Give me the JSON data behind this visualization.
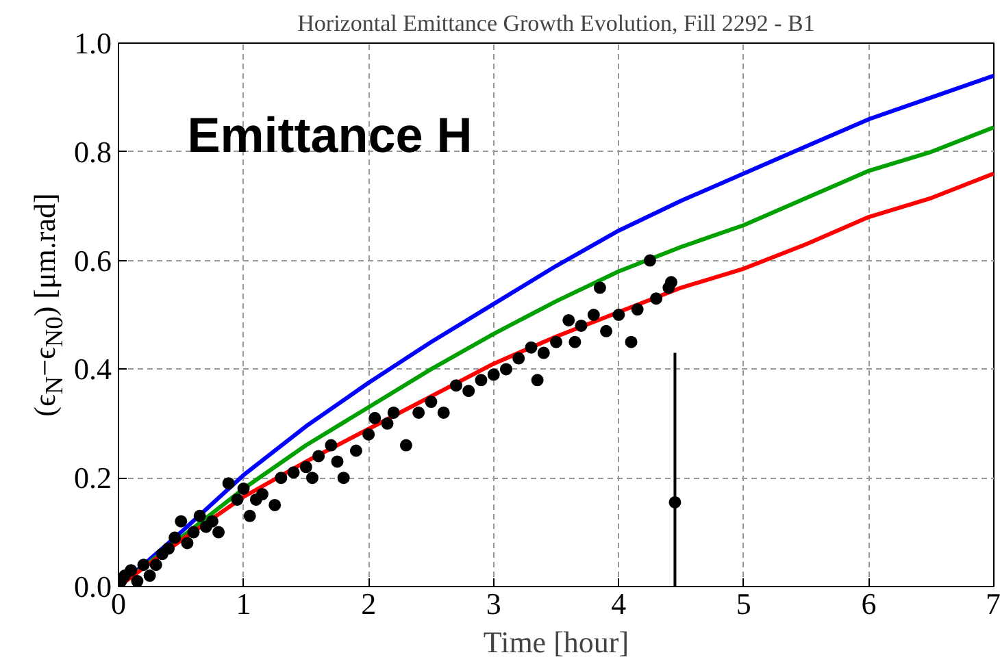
{
  "chart_data": {
    "type": "line",
    "title": "Horizontal Emittance Growth Evolution, Fill 2292 - B1",
    "xlabel": "Time [hour]",
    "ylabel": "(ϵ$_{N}$−ϵ$_{N0}$) [μm.rad]",
    "annotations": [
      "Emittance H"
    ],
    "xlim": [
      0,
      7
    ],
    "ylim": [
      0,
      1.0
    ],
    "xticks": [
      0,
      1,
      2,
      3,
      4,
      5,
      6,
      7
    ],
    "yticks": [
      {
        "value": 0,
        "label": "0.0"
      },
      0.2,
      0.4,
      0.6,
      0.8,
      {
        "value": 1,
        "label": "1.0"
      }
    ],
    "grid": true,
    "line_style": "solid",
    "series": [
      {
        "color": "#0000ff",
        "x": [
          0,
          0.5,
          1,
          1.5,
          2,
          2.5,
          3,
          3.5,
          4,
          4.5,
          5,
          5.5,
          6,
          6.5,
          7
        ],
        "values": [
          0,
          0.1,
          0.205,
          0.295,
          0.375,
          0.45,
          0.52,
          0.59,
          0.655,
          0.71,
          0.76,
          0.81,
          0.86,
          0.9,
          0.94
        ]
      },
      {
        "color": "#00a000",
        "x": [
          0,
          0.5,
          1,
          1.5,
          2,
          2.5,
          3,
          3.5,
          4,
          4.5,
          5,
          5.5,
          6,
          6.5,
          7
        ],
        "values": [
          0,
          0.09,
          0.18,
          0.26,
          0.33,
          0.4,
          0.465,
          0.525,
          0.58,
          0.625,
          0.665,
          0.715,
          0.765,
          0.8,
          0.845
        ]
      },
      {
        "color": "#ff0000",
        "x": [
          0,
          0.5,
          1,
          1.5,
          2,
          2.5,
          3,
          3.5,
          4,
          4.5,
          5,
          5.5,
          6,
          6.5,
          7
        ],
        "values": [
          0,
          0.085,
          0.165,
          0.23,
          0.29,
          0.35,
          0.41,
          0.46,
          0.505,
          0.55,
          0.585,
          0.63,
          0.68,
          0.715,
          0.76
        ]
      },
      {
        "type": "scatter",
        "color": "#000000",
        "marker": "circle",
        "x": [
          0.02,
          0.05,
          0.1,
          0.15,
          0.2,
          0.25,
          0.3,
          0.35,
          0.4,
          0.45,
          0.5,
          0.55,
          0.6,
          0.65,
          0.7,
          0.75,
          0.8,
          0.88,
          0.95,
          1.0,
          1.05,
          1.1,
          1.15,
          1.25,
          1.3,
          1.4,
          1.5,
          1.55,
          1.6,
          1.7,
          1.75,
          1.8,
          1.9,
          2.0,
          2.05,
          2.15,
          2.2,
          2.3,
          2.4,
          2.5,
          2.6,
          2.7,
          2.8,
          2.9,
          3.0,
          3.1,
          3.2,
          3.3,
          3.35,
          3.4,
          3.5,
          3.6,
          3.65,
          3.7,
          3.8,
          3.85,
          3.9,
          4.0,
          4.1,
          4.15,
          4.25,
          4.3,
          4.4,
          4.42,
          4.45
        ],
        "values": [
          0.01,
          0.02,
          0.03,
          0.01,
          0.04,
          0.02,
          0.04,
          0.06,
          0.07,
          0.09,
          0.12,
          0.08,
          0.1,
          0.13,
          0.11,
          0.12,
          0.1,
          0.19,
          0.16,
          0.18,
          0.13,
          0.16,
          0.17,
          0.15,
          0.2,
          0.21,
          0.22,
          0.2,
          0.24,
          0.26,
          0.23,
          0.2,
          0.25,
          0.28,
          0.31,
          0.3,
          0.32,
          0.26,
          0.32,
          0.34,
          0.32,
          0.37,
          0.36,
          0.38,
          0.39,
          0.4,
          0.42,
          0.44,
          0.38,
          0.43,
          0.45,
          0.49,
          0.45,
          0.48,
          0.5,
          0.55,
          0.47,
          0.5,
          0.45,
          0.51,
          0.6,
          0.53,
          0.55,
          0.56,
          0.155
        ],
        "errors": [
          0.01,
          0.01,
          0.01,
          0.01,
          0.01,
          0.01,
          0.01,
          0.01,
          0.01,
          0.01,
          0.01,
          0.01,
          0.01,
          0.01,
          0.01,
          0.01,
          0.01,
          0.01,
          0.01,
          0.01,
          0.01,
          0.01,
          0.01,
          0.01,
          0.01,
          0.01,
          0.01,
          0.01,
          0.01,
          0.01,
          0.01,
          0.01,
          0.01,
          0.01,
          0.01,
          0.01,
          0.01,
          0.01,
          0.01,
          0.01,
          0.01,
          0.01,
          0.01,
          0.01,
          0.01,
          0.01,
          0.01,
          0.01,
          0.01,
          0.01,
          0.01,
          0.01,
          0.01,
          0.01,
          0.01,
          0.01,
          0.01,
          0.01,
          0.01,
          0.01,
          0.01,
          0.01,
          0.01,
          0.01,
          [
            0.0,
            0.43
          ]
        ]
      }
    ]
  }
}
